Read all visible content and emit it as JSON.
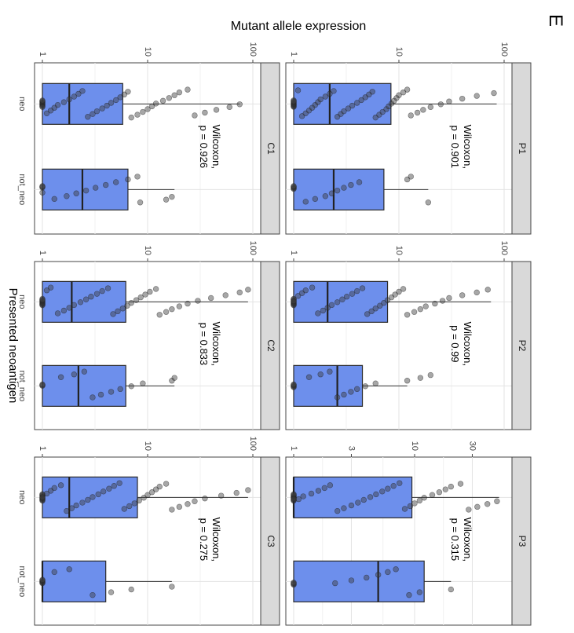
{
  "figure": {
    "panel_letter": "E",
    "ylabel": "Mutant allele expression",
    "xlabel": "Presented neoantigen"
  },
  "chart_data": [
    {
      "type": "box",
      "facet": "P1",
      "scale": "log10",
      "ylim": [
        1,
        100
      ],
      "ticks": [
        1,
        10,
        100
      ],
      "tick_labels": [
        "1",
        "10",
        "100"
      ],
      "categories": [
        "neo",
        "not_neo"
      ],
      "annotation": [
        "Wilcoxon,",
        "p = 0.901"
      ],
      "boxes": [
        {
          "category": "neo",
          "q1": 1.0,
          "median": 2.2,
          "q3": 8.4,
          "whisker_low": 1.0,
          "whisker_high": 85,
          "points": [
            1,
            1,
            1,
            1,
            1,
            1,
            1,
            1,
            1,
            1,
            1.1,
            1.2,
            1.3,
            1.4,
            1.5,
            1.6,
            1.7,
            1.8,
            2.0,
            2.2,
            2.4,
            2.6,
            2.8,
            3.0,
            3.3,
            3.6,
            4.0,
            4.4,
            4.8,
            5.2,
            5.6,
            6.0,
            6.5,
            7.0,
            7.6,
            8.0,
            8.5,
            9.0,
            9.5,
            10,
            11,
            12,
            13,
            15,
            17,
            20,
            25,
            30,
            40,
            55,
            80
          ]
        },
        {
          "category": "not_neo",
          "q1": 1.0,
          "median": 2.4,
          "q3": 7.2,
          "whisker_low": 1.0,
          "whisker_high": 19,
          "points": [
            1,
            1,
            1,
            1,
            1,
            1.3,
            1.6,
            2.0,
            2.3,
            2.6,
            3.0,
            3.5,
            4.2,
            12,
            13,
            19
          ]
        }
      ]
    },
    {
      "type": "box",
      "facet": "P2",
      "scale": "log10",
      "ylim": [
        1,
        100
      ],
      "ticks": [
        1,
        10,
        100
      ],
      "tick_labels": [
        "1",
        "10",
        "100"
      ],
      "categories": [
        "neo",
        "not_neo"
      ],
      "annotation": [
        "Wilcoxon,",
        "p = 0.99"
      ],
      "boxes": [
        {
          "category": "neo",
          "q1": 1.0,
          "median": 2.1,
          "q3": 7.8,
          "whisker_low": 1.0,
          "whisker_high": 75,
          "points": [
            1,
            1,
            1,
            1,
            1,
            1,
            1,
            1,
            1,
            1,
            1.1,
            1.2,
            1.3,
            1.5,
            1.7,
            1.9,
            2.1,
            2.3,
            2.6,
            2.9,
            3.2,
            3.6,
            4.0,
            4.5,
            5.0,
            5.5,
            6.0,
            6.6,
            7.2,
            7.8,
            8.5,
            9.2,
            10,
            11,
            12,
            14,
            16,
            18,
            22,
            26,
            30,
            40,
            55,
            70
          ]
        },
        {
          "category": "not_neo",
          "q1": 1.0,
          "median": 2.6,
          "q3": 4.5,
          "whisker_low": 1.0,
          "whisker_high": 12,
          "points": [
            1,
            1,
            1,
            1,
            1,
            1.4,
            1.8,
            2.2,
            2.6,
            3.0,
            3.5,
            4.0,
            4.8,
            6.0,
            12,
            16,
            20
          ]
        }
      ]
    },
    {
      "type": "box",
      "facet": "P3",
      "scale": "log10",
      "ylim": [
        1,
        55
      ],
      "ticks": [
        1,
        3,
        10,
        30
      ],
      "tick_labels": [
        "1",
        "3",
        "10",
        "30"
      ],
      "categories": [
        "neo",
        "not_neo"
      ],
      "annotation": [
        "Wilcoxon,",
        "p = 0.315"
      ],
      "boxes": [
        {
          "category": "neo",
          "q1": 1.0,
          "median": 1.0,
          "q3": 9.5,
          "whisker_low": 1.0,
          "whisker_high": 50,
          "points": [
            1,
            1,
            1,
            1,
            1,
            1,
            1,
            1,
            1,
            1,
            1.1,
            1.2,
            1.4,
            1.6,
            1.8,
            2.0,
            2.3,
            2.6,
            3.0,
            3.4,
            3.8,
            4.3,
            4.8,
            5.4,
            6.0,
            6.7,
            7.5,
            8.3,
            9.2,
            10,
            11,
            12,
            14,
            16,
            18,
            20,
            24,
            28,
            33,
            40,
            48
          ]
        },
        {
          "category": "not_neo",
          "q1": 1.0,
          "median": 5.0,
          "q3": 12,
          "whisker_low": 1.0,
          "whisker_high": 20,
          "points": [
            1,
            1,
            1,
            1,
            2.2,
            3.0,
            4.0,
            5.0,
            6.0,
            7.0,
            9.0,
            11,
            20
          ]
        }
      ]
    },
    {
      "type": "box",
      "facet": "C1",
      "scale": "log10",
      "ylim": [
        1,
        100
      ],
      "ticks": [
        1,
        10,
        100
      ],
      "tick_labels": [
        "1",
        "10",
        "100"
      ],
      "categories": [
        "neo",
        "not_neo"
      ],
      "annotation": [
        "Wilcoxon,",
        "p = 0.926"
      ],
      "boxes": [
        {
          "category": "neo",
          "q1": 1.0,
          "median": 1.8,
          "q3": 5.8,
          "whisker_low": 1.0,
          "whisker_high": 75,
          "points": [
            1,
            1,
            1,
            1,
            1,
            1,
            1,
            1,
            1,
            1,
            1.1,
            1.2,
            1.3,
            1.4,
            1.6,
            1.8,
            2.0,
            2.2,
            2.4,
            2.7,
            3.0,
            3.3,
            3.7,
            4.1,
            4.5,
            5.0,
            5.5,
            6.0,
            6.5,
            7.0,
            8.0,
            9.0,
            10,
            11,
            12,
            14,
            16,
            18,
            20,
            24,
            28,
            35,
            45,
            60,
            75
          ]
        },
        {
          "category": "not_neo",
          "q1": 1.0,
          "median": 2.4,
          "q3": 6.5,
          "whisker_low": 1.0,
          "whisker_high": 18,
          "points": [
            1,
            1,
            1,
            1,
            1.3,
            1.7,
            2.1,
            2.6,
            3.2,
            4.0,
            5.0,
            6.5,
            8.0,
            8.5,
            15,
            17
          ]
        }
      ]
    },
    {
      "type": "box",
      "facet": "C2",
      "scale": "log10",
      "ylim": [
        1,
        100
      ],
      "ticks": [
        1,
        10,
        100
      ],
      "tick_labels": [
        "1",
        "10",
        "100"
      ],
      "categories": [
        "neo",
        "not_neo"
      ],
      "annotation": [
        "Wilcoxon,",
        "p = 0.833"
      ],
      "boxes": [
        {
          "category": "neo",
          "q1": 1.0,
          "median": 1.9,
          "q3": 6.2,
          "whisker_low": 1.0,
          "whisker_high": 90,
          "points": [
            1,
            1,
            1,
            1,
            1,
            1,
            1,
            1,
            1,
            1,
            1.1,
            1.2,
            1.4,
            1.6,
            1.8,
            2.0,
            2.3,
            2.6,
            2.9,
            3.3,
            3.7,
            4.2,
            4.7,
            5.2,
            5.8,
            6.4,
            7.0,
            7.8,
            8.6,
            9.5,
            10.5,
            12,
            13,
            15,
            17,
            20,
            24,
            30,
            40,
            55,
            75,
            90
          ]
        },
        {
          "category": "not_neo",
          "q1": 1.0,
          "median": 2.2,
          "q3": 6.2,
          "whisker_low": 1.0,
          "whisker_high": 18,
          "points": [
            1,
            1,
            1,
            1.5,
            2.0,
            2.5,
            3.0,
            3.6,
            4.5,
            5.5,
            7.0,
            9.0,
            17,
            18
          ]
        }
      ]
    },
    {
      "type": "box",
      "facet": "C3",
      "scale": "log10",
      "ylim": [
        1,
        100
      ],
      "ticks": [
        1,
        10,
        100
      ],
      "tick_labels": [
        "1",
        "10",
        "100"
      ],
      "categories": [
        "neo",
        "not_neo"
      ],
      "annotation": [
        "Wilcoxon,",
        "p = 0.275"
      ],
      "boxes": [
        {
          "category": "neo",
          "q1": 1.0,
          "median": 1.8,
          "q3": 8.0,
          "whisker_low": 1.0,
          "whisker_high": 90,
          "points": [
            1,
            1,
            1,
            1,
            1,
            1,
            1,
            1,
            1,
            1,
            1.1,
            1.2,
            1.3,
            1.5,
            1.7,
            1.9,
            2.1,
            2.4,
            2.7,
            3.0,
            3.4,
            3.8,
            4.3,
            4.8,
            5.4,
            6.0,
            6.7,
            7.5,
            8.3,
            9.2,
            10,
            11,
            12,
            13,
            15,
            17,
            20,
            24,
            28,
            35,
            50,
            70,
            90
          ]
        },
        {
          "category": "not_neo",
          "q1": 1.0,
          "median": 1.0,
          "q3": 4.0,
          "whisker_low": 1.0,
          "whisker_high": 17,
          "points": [
            1,
            1,
            1,
            1,
            1,
            1,
            1.3,
            1.8,
            3.0,
            4.5,
            7.0,
            17
          ]
        }
      ]
    }
  ]
}
